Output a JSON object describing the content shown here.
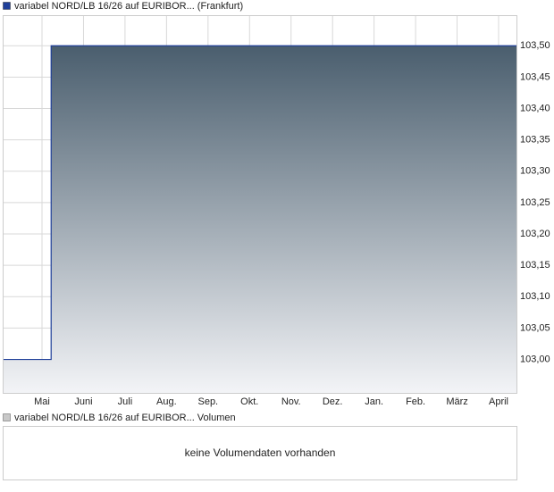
{
  "chart_data": {
    "type": "area",
    "categories": [
      "Mai",
      "Juni",
      "Juli",
      "Aug.",
      "Sep.",
      "Okt.",
      "Nov.",
      "Dez.",
      "Jan.",
      "Feb.",
      "März",
      "April"
    ],
    "series": [
      {
        "name": "variabel NORD/LB 16/26 auf EURIBOR... (Frankfurt)",
        "color": "#1f3f99",
        "values": [
          103.0,
          103.5,
          103.5,
          103.5,
          103.5,
          103.5,
          103.5,
          103.5,
          103.5,
          103.5,
          103.5,
          103.5
        ]
      }
    ],
    "ylim": [
      102.946,
      103.548
    ],
    "yticks": [
      {
        "value": 103.0,
        "label": "103,00"
      },
      {
        "value": 103.05,
        "label": "103,05"
      },
      {
        "value": 103.1,
        "label": "103,10"
      },
      {
        "value": 103.15,
        "label": "103,15"
      },
      {
        "value": 103.2,
        "label": "103,20"
      },
      {
        "value": 103.25,
        "label": "103,25"
      },
      {
        "value": 103.3,
        "label": "103,30"
      },
      {
        "value": 103.35,
        "label": "103,35"
      },
      {
        "value": 103.4,
        "label": "103,40"
      },
      {
        "value": 103.45,
        "label": "103,45"
      },
      {
        "value": 103.5,
        "label": "103,50"
      }
    ],
    "grid": true
  },
  "volume_panel": {
    "legend": "variabel NORD/LB 16/26 auf EURIBOR... Volumen",
    "message": "keine Volumendaten vorhanden"
  }
}
